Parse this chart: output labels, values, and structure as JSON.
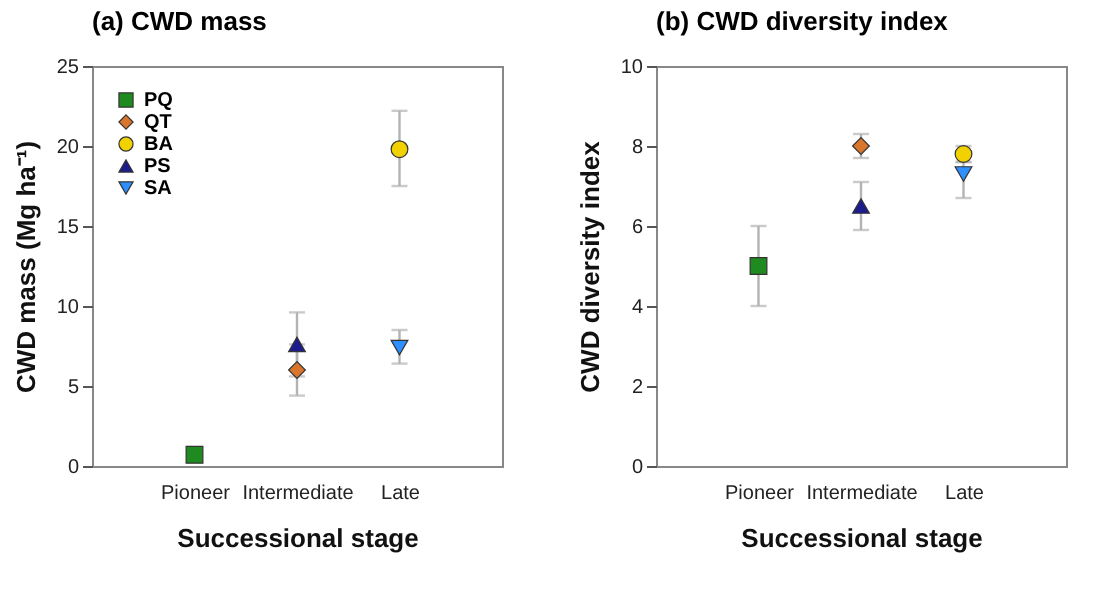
{
  "chart_data": [
    {
      "type": "scatter",
      "title": "(a) CWD mass",
      "xlabel": "Successional stage",
      "ylabel": "CWD mass (Mg ha⁻¹)",
      "categories": [
        "Pioneer",
        "Intermediate",
        "Late"
      ],
      "ylim": [
        0,
        25
      ],
      "yticks": [
        0,
        5,
        10,
        15,
        20,
        25
      ],
      "grid": false,
      "legend": "top left",
      "series": [
        {
          "name": "PQ",
          "color": "#1f8a1f",
          "marker": "square",
          "values": [
            0.7,
            null,
            null
          ],
          "errors": [
            null,
            null,
            null
          ]
        },
        {
          "name": "QT",
          "color": "#d9762b",
          "marker": "diamond",
          "values": [
            null,
            6.0,
            null
          ],
          "errors": [
            null,
            [
              4.4,
              7.6
            ],
            null
          ]
        },
        {
          "name": "BA",
          "color": "#f2d100",
          "marker": "circle",
          "values": [
            null,
            null,
            19.8
          ],
          "errors": [
            null,
            null,
            [
              17.5,
              22.2
            ]
          ]
        },
        {
          "name": "PS",
          "color": "#1c1c8c",
          "marker": "triangle",
          "values": [
            null,
            7.6,
            null
          ],
          "errors": [
            null,
            [
              5.6,
              9.6
            ],
            null
          ]
        },
        {
          "name": "SA",
          "color": "#2e8fff",
          "marker": "triangle-down",
          "values": [
            null,
            null,
            7.4
          ],
          "errors": [
            null,
            null,
            [
              6.4,
              8.5
            ]
          ]
        }
      ]
    },
    {
      "type": "scatter",
      "title": "(b) CWD diversity index",
      "xlabel": "Successional stage",
      "ylabel": "CWD diversity index",
      "categories": [
        "Pioneer",
        "Intermediate",
        "Late"
      ],
      "ylim": [
        0,
        10
      ],
      "yticks": [
        0,
        2,
        4,
        6,
        8,
        10
      ],
      "grid": false,
      "series": [
        {
          "color": "#1f8a1f",
          "marker": "square",
          "values": [
            5.0,
            null,
            null
          ],
          "errors": [
            [
              4.0,
              6.0
            ],
            null,
            null
          ]
        },
        {
          "color": "#d9762b",
          "marker": "diamond",
          "values": [
            null,
            8.0,
            null
          ],
          "errors": [
            null,
            [
              7.7,
              8.3
            ],
            null
          ]
        },
        {
          "color": "#f2d100",
          "marker": "circle",
          "values": [
            null,
            null,
            7.8
          ],
          "errors": [
            null,
            null,
            [
              7.6,
              8.0
            ]
          ]
        },
        {
          "color": "#1c1c8c",
          "marker": "triangle",
          "values": [
            null,
            6.5,
            null
          ],
          "errors": [
            null,
            [
              5.9,
              7.1
            ],
            null
          ]
        },
        {
          "color": "#2e8fff",
          "marker": "triangle-down",
          "values": [
            null,
            null,
            7.3
          ],
          "errors": [
            null,
            null,
            [
              6.7,
              7.6
            ]
          ]
        }
      ]
    }
  ]
}
